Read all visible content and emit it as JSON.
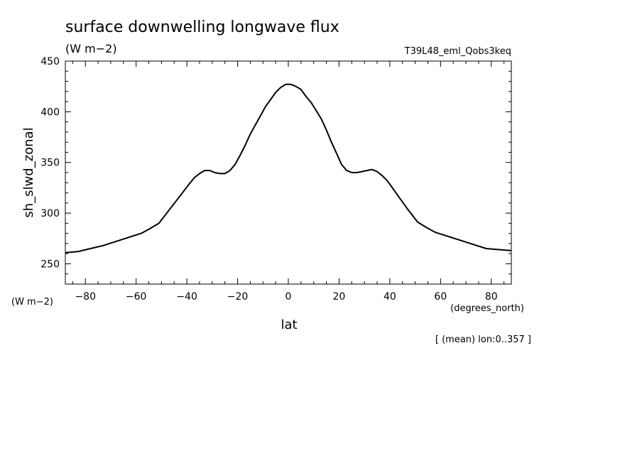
{
  "chart_data": {
    "type": "line",
    "title": "surface downwelling longwave flux",
    "units": "(W m−2)",
    "experiment": "T39L48_eml_Qobs3keq",
    "ylabel": "sh_slwd_zonal",
    "y_units": "(W m−2)",
    "xlabel": "lat",
    "x_units": "(degrees_north)",
    "footnote": "[ (mean) lon:0..357 ]",
    "xlim": [
      -87.9,
      87.9
    ],
    "ylim": [
      230,
      450
    ],
    "x_ticks": [
      -80,
      -60,
      -40,
      -20,
      0,
      20,
      40,
      60,
      80
    ],
    "x_tick_labels": [
      "−80",
      "−60",
      "−40",
      "−20",
      "0",
      "20",
      "40",
      "60",
      "80"
    ],
    "y_ticks": [
      250,
      300,
      350,
      400,
      450
    ],
    "y_tick_labels": [
      "250",
      "300",
      "350",
      "400",
      "450"
    ],
    "grid": false,
    "series": [
      {
        "x": [
          -87.9,
          -83,
          -78,
          -73,
          -68,
          -63,
          -58,
          -55,
          -51,
          -47,
          -43,
          -39,
          -37,
          -35,
          -33,
          -31,
          -29,
          -27,
          -25,
          -23,
          -21,
          -19,
          -17,
          -15,
          -13,
          -11,
          -9,
          -7,
          -5,
          -3,
          -1,
          1,
          3,
          5,
          7,
          9,
          11,
          13,
          15,
          17,
          19,
          21,
          23,
          25,
          27,
          29,
          31,
          33,
          35,
          37,
          39,
          43,
          47,
          51,
          55,
          58,
          63,
          68,
          73,
          78,
          83,
          87.9
        ],
        "y": [
          261,
          262,
          265,
          268,
          272,
          276,
          280,
          284,
          290,
          303,
          316,
          329,
          335,
          339,
          342,
          342,
          340,
          339,
          339,
          342,
          348,
          357,
          367,
          378,
          387,
          396,
          405,
          412,
          419,
          424,
          427,
          427,
          425,
          422,
          415,
          409,
          401,
          393,
          382,
          370,
          359,
          348,
          342,
          340,
          340,
          341,
          342,
          343,
          341,
          337,
          332,
          318,
          304,
          291,
          285,
          281,
          277,
          273,
          269,
          265,
          264,
          263
        ]
      }
    ]
  }
}
